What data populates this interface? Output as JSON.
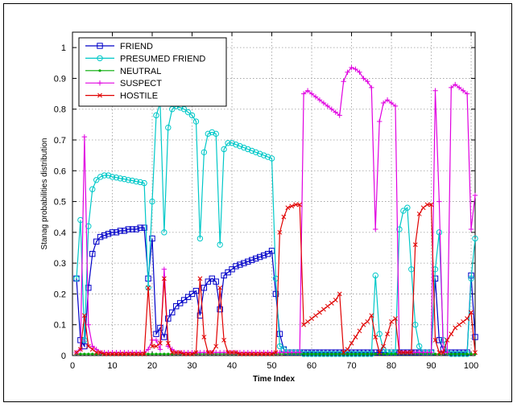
{
  "chart_data": {
    "type": "line",
    "xlabel": "Time Index",
    "ylabel": "Stanag probabilities distribution",
    "xlim": [
      0,
      101
    ],
    "ylim": [
      0,
      1.05
    ],
    "xticks": [
      "0",
      "10",
      "20",
      "30",
      "40",
      "50",
      "60",
      "70",
      "80",
      "90",
      "100"
    ],
    "yticks": [
      "0",
      "0.1",
      "0.2",
      "0.3",
      "0.4",
      "0.5",
      "0.6",
      "0.7",
      "0.8",
      "0.9",
      "1"
    ],
    "grid": true,
    "legend_position": "top-left",
    "x": [
      1,
      2,
      3,
      4,
      5,
      6,
      7,
      8,
      9,
      10,
      11,
      12,
      13,
      14,
      15,
      16,
      17,
      18,
      19,
      20,
      21,
      22,
      23,
      24,
      25,
      26,
      27,
      28,
      29,
      30,
      31,
      32,
      33,
      34,
      35,
      36,
      37,
      38,
      39,
      40,
      41,
      42,
      43,
      44,
      45,
      46,
      47,
      48,
      49,
      50,
      51,
      52,
      53,
      54,
      55,
      56,
      57,
      58,
      59,
      60,
      61,
      62,
      63,
      64,
      65,
      66,
      67,
      68,
      69,
      70,
      71,
      72,
      73,
      74,
      75,
      76,
      77,
      78,
      79,
      80,
      81,
      82,
      83,
      84,
      85,
      86,
      87,
      88,
      89,
      90,
      91,
      92,
      93,
      94,
      95,
      96,
      97,
      98,
      99,
      100,
      101
    ],
    "series": [
      {
        "name": "FRIEND",
        "color": "#0000c8",
        "marker": "square",
        "values": [
          0.25,
          0.05,
          0.03,
          0.22,
          0.33,
          0.37,
          0.385,
          0.39,
          0.395,
          0.4,
          0.4,
          0.405,
          0.405,
          0.41,
          0.41,
          0.41,
          0.415,
          0.415,
          0.25,
          0.38,
          0.07,
          0.09,
          0.06,
          0.12,
          0.14,
          0.16,
          0.17,
          0.18,
          0.19,
          0.2,
          0.21,
          0.13,
          0.22,
          0.24,
          0.25,
          0.24,
          0.15,
          0.26,
          0.27,
          0.28,
          0.29,
          0.295,
          0.3,
          0.305,
          0.31,
          0.315,
          0.32,
          0.325,
          0.33,
          0.34,
          0.2,
          0.07,
          0.02,
          0.01,
          0.01,
          0.01,
          0.01,
          0.01,
          0.01,
          0.01,
          0.01,
          0.01,
          0.01,
          0.01,
          0.01,
          0.01,
          0.01,
          0.01,
          0.01,
          0.01,
          0.01,
          0.01,
          0.01,
          0.01,
          0.01,
          0.01,
          0.01,
          0.01,
          0.01,
          0.01,
          0.01,
          0.01,
          0.01,
          0.01,
          0.01,
          0.01,
          0.01,
          0.01,
          0.01,
          0.01,
          0.25,
          0.05,
          0.02,
          0.01,
          0.01,
          0.01,
          0.01,
          0.01,
          0.01,
          0.26,
          0.06
        ]
      },
      {
        "name": "PRESUMED FRIEND",
        "color": "#00c8c8",
        "marker": "circle",
        "values": [
          0.25,
          0.44,
          0.05,
          0.42,
          0.54,
          0.57,
          0.58,
          0.585,
          0.585,
          0.58,
          0.578,
          0.575,
          0.573,
          0.57,
          0.568,
          0.565,
          0.563,
          0.56,
          0.22,
          0.5,
          0.78,
          0.82,
          0.4,
          0.74,
          0.8,
          0.81,
          0.805,
          0.8,
          0.79,
          0.78,
          0.76,
          0.38,
          0.66,
          0.72,
          0.725,
          0.72,
          0.36,
          0.67,
          0.69,
          0.69,
          0.685,
          0.68,
          0.675,
          0.67,
          0.665,
          0.66,
          0.655,
          0.65,
          0.645,
          0.64,
          0.25,
          0.03,
          0.02,
          0.01,
          0.01,
          0.01,
          0.01,
          0.005,
          0.005,
          0.005,
          0.005,
          0.005,
          0.005,
          0.005,
          0.005,
          0.005,
          0.005,
          0.005,
          0.005,
          0.005,
          0.005,
          0.005,
          0.005,
          0.005,
          0.005,
          0.26,
          0.07,
          0.02,
          0.01,
          0.01,
          0.01,
          0.41,
          0.47,
          0.48,
          0.28,
          0.1,
          0.03,
          0.01,
          0.01,
          0.01,
          0.28,
          0.4,
          0.05,
          0.01,
          0.005,
          0.005,
          0.005,
          0.005,
          0.005,
          0.25,
          0.38
        ]
      },
      {
        "name": "NEUTRAL",
        "color": "#00aa00",
        "marker": "dot",
        "values": [
          0.005,
          0.005,
          0.005,
          0.005,
          0.005,
          0.005,
          0.005,
          0.005,
          0.005,
          0.005,
          0.005,
          0.005,
          0.005,
          0.005,
          0.005,
          0.005,
          0.005,
          0.005,
          0.005,
          0.005,
          0.005,
          0.005,
          0.005,
          0.005,
          0.005,
          0.005,
          0.005,
          0.005,
          0.005,
          0.005,
          0.005,
          0.005,
          0.005,
          0.005,
          0.005,
          0.005,
          0.005,
          0.005,
          0.005,
          0.005,
          0.005,
          0.005,
          0.005,
          0.005,
          0.005,
          0.005,
          0.005,
          0.005,
          0.005,
          0.005,
          0.005,
          0.005,
          0.005,
          0.005,
          0.005,
          0.005,
          0.005,
          0.005,
          0.005,
          0.005,
          0.005,
          0.005,
          0.005,
          0.005,
          0.005,
          0.005,
          0.005,
          0.005,
          0.005,
          0.005,
          0.005,
          0.005,
          0.005,
          0.005,
          0.005,
          0.005,
          0.005,
          0.005,
          0.005,
          0.005,
          0.005,
          0.005,
          0.005,
          0.005,
          0.005,
          0.005,
          0.005,
          0.005,
          0.005,
          0.005,
          0.005,
          0.005,
          0.005,
          0.005,
          0.005,
          0.005,
          0.005,
          0.005,
          0.005,
          0.005,
          0.005
        ]
      },
      {
        "name": "SUSPECT",
        "color": "#e000e0",
        "marker": "plus",
        "values": [
          0.01,
          0.02,
          0.71,
          0.1,
          0.03,
          0.02,
          0.01,
          0.01,
          0.01,
          0.01,
          0.01,
          0.01,
          0.01,
          0.01,
          0.01,
          0.01,
          0.01,
          0.01,
          0.02,
          0.05,
          0.05,
          0.02,
          0.28,
          0.03,
          0.02,
          0.01,
          0.01,
          0.01,
          0.01,
          0.01,
          0.01,
          0.01,
          0.01,
          0.01,
          0.01,
          0.01,
          0.01,
          0.01,
          0.01,
          0.01,
          0.01,
          0.01,
          0.01,
          0.01,
          0.01,
          0.01,
          0.01,
          0.01,
          0.01,
          0.01,
          0.01,
          0.01,
          0.01,
          0.01,
          0.01,
          0.01,
          0.01,
          0.85,
          0.86,
          0.85,
          0.84,
          0.83,
          0.82,
          0.81,
          0.8,
          0.79,
          0.78,
          0.89,
          0.92,
          0.935,
          0.93,
          0.92,
          0.9,
          0.89,
          0.87,
          0.41,
          0.76,
          0.82,
          0.83,
          0.82,
          0.81,
          0.01,
          0.01,
          0.01,
          0.01,
          0.01,
          0.01,
          0.01,
          0.01,
          0.01,
          0.86,
          0.5,
          0.01,
          0.01,
          0.87,
          0.88,
          0.87,
          0.86,
          0.85,
          0.41,
          0.52
        ]
      },
      {
        "name": "HOSTILE",
        "color": "#e00000",
        "marker": "x",
        "values": [
          0.01,
          0.02,
          0.13,
          0.03,
          0.02,
          0.01,
          0.01,
          0.005,
          0.005,
          0.005,
          0.005,
          0.005,
          0.005,
          0.005,
          0.005,
          0.005,
          0.005,
          0.005,
          0.22,
          0.03,
          0.03,
          0.04,
          0.25,
          0.04,
          0.01,
          0.01,
          0.01,
          0.005,
          0.005,
          0.005,
          0.01,
          0.25,
          0.06,
          0.01,
          0.01,
          0.03,
          0.22,
          0.05,
          0.01,
          0.01,
          0.01,
          0.005,
          0.005,
          0.005,
          0.005,
          0.005,
          0.005,
          0.005,
          0.005,
          0.005,
          0.01,
          0.4,
          0.45,
          0.48,
          0.485,
          0.49,
          0.49,
          0.1,
          0.11,
          0.12,
          0.13,
          0.14,
          0.15,
          0.16,
          0.17,
          0.18,
          0.2,
          0.01,
          0.02,
          0.04,
          0.06,
          0.08,
          0.1,
          0.11,
          0.13,
          0.06,
          0.01,
          0.03,
          0.07,
          0.11,
          0.12,
          0.01,
          0.01,
          0.01,
          0.01,
          0.36,
          0.46,
          0.48,
          0.49,
          0.49,
          0.05,
          0.01,
          0.01,
          0.05,
          0.07,
          0.09,
          0.1,
          0.11,
          0.12,
          0.14,
          0.01
        ]
      }
    ]
  }
}
